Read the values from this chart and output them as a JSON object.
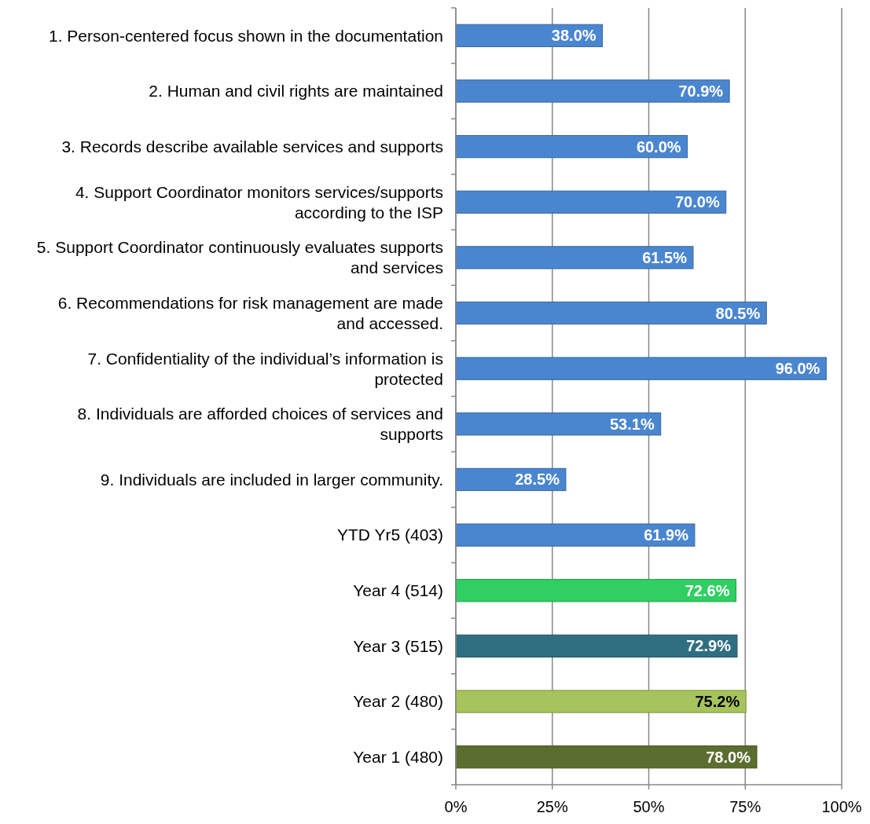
{
  "chart_data": {
    "type": "bar",
    "orientation": "horizontal",
    "categories": [
      "1. Person-centered focus shown in the documentation",
      "2. Human and civil rights are maintained",
      "3. Records describe available services and supports",
      "4. Support Coordinator monitors services/supports according to the ISP",
      "5. Support Coordinator continuously evaluates supports and services",
      "6. Recommendations for risk management are made and accessed.",
      "7. Confidentiality of the individual’s information is protected",
      "8. Individuals are afforded choices of services and supports",
      "9. Individuals are included in larger community.",
      "YTD Yr5 (403)",
      "Year 4 (514)",
      "Year 3 (515)",
      "Year 2 (480)",
      "Year 1 (480)"
    ],
    "values": [
      38.0,
      70.9,
      60.0,
      70.0,
      61.5,
      80.5,
      96.0,
      53.1,
      28.5,
      61.9,
      72.6,
      72.9,
      75.2,
      78.0
    ],
    "colors": [
      "#4a86d0",
      "#4a86d0",
      "#4a86d0",
      "#4a86d0",
      "#4a86d0",
      "#4a86d0",
      "#4a86d0",
      "#4a86d0",
      "#4a86d0",
      "#4a86d0",
      "#2fcf63",
      "#2f6e80",
      "#a7c35c",
      "#5b6d2f"
    ],
    "value_labels": [
      "38.0%",
      "70.9%",
      "60.0%",
      "70.0%",
      "61.5%",
      "80.5%",
      "96.0%",
      "53.1%",
      "28.5%",
      "61.9%",
      "72.6%",
      "72.9%",
      "75.2%",
      "78.0%"
    ],
    "xlim": [
      0,
      100
    ],
    "xticks": [
      {
        "value": 0,
        "label": "0%"
      },
      {
        "value": 25,
        "label": "25%"
      },
      {
        "value": 50,
        "label": "50%"
      },
      {
        "value": 75,
        "label": "75%"
      },
      {
        "value": 100,
        "label": "100%"
      }
    ],
    "grid": "x"
  }
}
